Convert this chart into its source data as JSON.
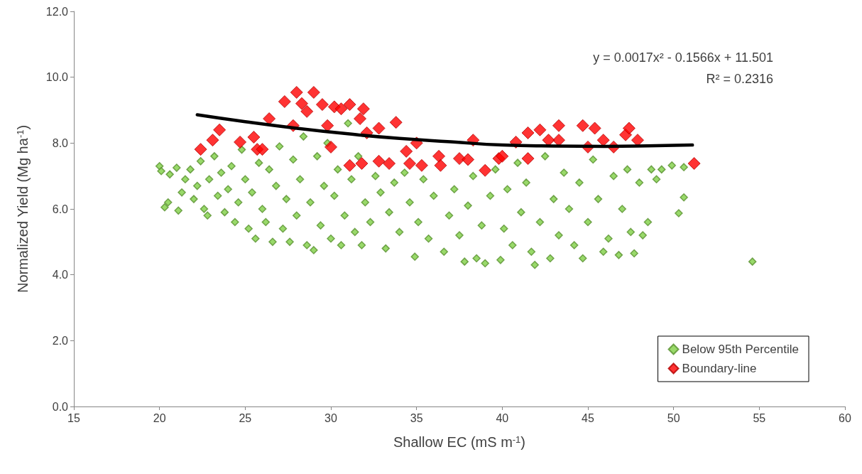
{
  "chart_data": {
    "type": "scatter",
    "xlabel": "Shallow EC (mS m$^{-1}$)",
    "ylabel": "Normalized Yield (Mg ha$^{-1}$)",
    "xlim": [
      15,
      60
    ],
    "xticks": [
      15,
      20,
      25,
      30,
      35,
      40,
      45,
      50,
      55,
      60
    ],
    "ylim": [
      0,
      12
    ],
    "yticks": [
      {
        "value": 0,
        "label": "0.0"
      },
      {
        "value": 2,
        "label": "2.0"
      },
      {
        "value": 4,
        "label": "4.0"
      },
      {
        "value": 6,
        "label": "6.0"
      },
      {
        "value": 8,
        "label": "8.0"
      },
      {
        "value": 10,
        "label": "10.0"
      },
      {
        "value": 12,
        "label": "12.0"
      }
    ],
    "grid": false,
    "legend": "bottom right",
    "marker": "diamond",
    "annotations": [
      "y = 0.0017x² - 0.1566x + 11.501",
      "R² = 0.2316"
    ],
    "series": [
      {
        "name": "Below 95th Percentile",
        "color": "#7fcf45",
        "x": [
          20.0,
          20.1,
          20.3,
          20.5,
          20.6,
          21.0,
          21.1,
          21.3,
          21.5,
          21.8,
          22.0,
          22.2,
          22.4,
          22.6,
          22.8,
          22.9,
          23.2,
          23.4,
          23.6,
          23.8,
          24.0,
          24.2,
          24.4,
          24.6,
          24.8,
          25.0,
          25.2,
          25.4,
          25.6,
          25.8,
          26.0,
          26.2,
          26.4,
          26.6,
          26.8,
          27.0,
          27.2,
          27.4,
          27.6,
          27.8,
          28.0,
          28.2,
          28.4,
          28.6,
          28.8,
          29.0,
          29.2,
          29.4,
          29.6,
          29.8,
          30.0,
          30.2,
          30.4,
          30.6,
          30.8,
          31.0,
          31.2,
          31.4,
          31.6,
          31.8,
          32.0,
          32.3,
          32.6,
          32.9,
          33.2,
          33.4,
          33.7,
          34.0,
          34.3,
          34.6,
          34.9,
          35.1,
          35.4,
          35.7,
          36.0,
          36.3,
          36.6,
          36.9,
          37.2,
          37.5,
          37.8,
          38.0,
          38.3,
          38.5,
          38.8,
          39.0,
          39.3,
          39.6,
          39.9,
          40.1,
          40.3,
          40.6,
          40.9,
          41.1,
          41.4,
          41.7,
          41.9,
          42.2,
          42.5,
          42.8,
          43.0,
          43.3,
          43.6,
          43.9,
          44.2,
          44.5,
          44.7,
          45.0,
          45.3,
          45.6,
          45.9,
          46.2,
          46.5,
          46.8,
          47.0,
          47.3,
          47.5,
          47.7,
          48.0,
          48.2,
          48.5,
          48.7,
          49.0,
          49.3,
          49.9,
          50.3,
          50.6,
          50.6,
          54.6
        ],
        "values": [
          7.3,
          7.15,
          6.05,
          6.2,
          7.05,
          7.25,
          5.95,
          6.5,
          6.9,
          7.2,
          6.3,
          6.7,
          7.45,
          6.0,
          5.8,
          6.9,
          7.6,
          6.4,
          7.1,
          5.9,
          6.6,
          7.3,
          5.6,
          6.2,
          7.8,
          6.9,
          5.4,
          6.5,
          5.1,
          7.4,
          6.0,
          5.6,
          7.2,
          5.0,
          6.7,
          7.9,
          5.4,
          6.3,
          5.0,
          7.5,
          5.8,
          6.9,
          8.2,
          4.9,
          6.2,
          4.75,
          7.6,
          5.5,
          6.7,
          8.0,
          5.1,
          6.4,
          7.2,
          4.9,
          5.8,
          8.6,
          6.9,
          5.3,
          7.6,
          4.9,
          6.2,
          5.6,
          7.0,
          6.5,
          4.8,
          5.9,
          6.8,
          5.3,
          7.1,
          6.2,
          4.55,
          5.6,
          6.9,
          5.1,
          6.4,
          null,
          4.7,
          5.8,
          6.6,
          5.2,
          4.4,
          6.1,
          7.0,
          4.5,
          5.5,
          4.35,
          6.4,
          7.2,
          4.45,
          5.4,
          6.6,
          4.9,
          7.4,
          5.9,
          6.8,
          4.7,
          4.3,
          5.6,
          7.6,
          4.5,
          6.3,
          5.2,
          7.1,
          6.0,
          4.9,
          6.8,
          4.5,
          5.6,
          7.5,
          6.3,
          4.7,
          5.1,
          7.0,
          4.6,
          6.0,
          7.2,
          5.3,
          4.65,
          6.8,
          5.2,
          5.6,
          7.2,
          6.9,
          7.2,
          7.32,
          5.87,
          6.35,
          7.27,
          4.4
        ]
      },
      {
        "name": "Boundary-line",
        "color": "#ff0000",
        "x": [
          22.4,
          23.5,
          23.1,
          24.7,
          25.5,
          25.7,
          26.0,
          26.4,
          27.3,
          28.0,
          29.0,
          29.5,
          28.6,
          27.8,
          29.8,
          30.0,
          28.3,
          30.2,
          30.6,
          31.1,
          31.9,
          31.7,
          32.8,
          33.8,
          32.1,
          31.1,
          31.8,
          32.8,
          33.4,
          34.4,
          34.6,
          35.0,
          35.3,
          36.3,
          36.4,
          37.5,
          38.0,
          38.3,
          39.0,
          39.8,
          40.0,
          40.8,
          41.5,
          42.2,
          41.5,
          43.3,
          43.3,
          42.7,
          44.7,
          45.4,
          45.0,
          45.9,
          46.5,
          47.2,
          47.4,
          47.9,
          51.2
        ],
        "values": [
          7.81,
          8.4,
          8.09,
          8.03,
          8.18,
          7.81,
          7.81,
          8.74,
          9.26,
          9.54,
          9.54,
          9.17,
          8.96,
          8.53,
          8.53,
          7.88,
          9.2,
          9.1,
          9.04,
          9.17,
          9.04,
          8.74,
          8.45,
          8.63,
          8.31,
          7.32,
          7.38,
          7.45,
          7.38,
          7.75,
          7.38,
          8.0,
          7.32,
          7.6,
          7.32,
          7.53,
          7.5,
          8.09,
          7.17,
          7.53,
          7.6,
          8.03,
          8.31,
          8.4,
          7.53,
          8.53,
          8.09,
          8.09,
          8.53,
          8.45,
          7.88,
          8.09,
          7.88,
          8.25,
          8.45,
          8.09,
          7.38
        ]
      },
      {
        "type": "line",
        "color": "#000000",
        "marker": "none",
        "x": [
          22.2,
          25,
          28,
          31,
          34,
          37,
          40,
          43,
          46,
          49,
          51.1
        ],
        "values": [
          8.86,
          8.65,
          8.45,
          8.28,
          8.14,
          8.04,
          7.94,
          7.91,
          7.9,
          7.92,
          7.94
        ]
      }
    ]
  }
}
